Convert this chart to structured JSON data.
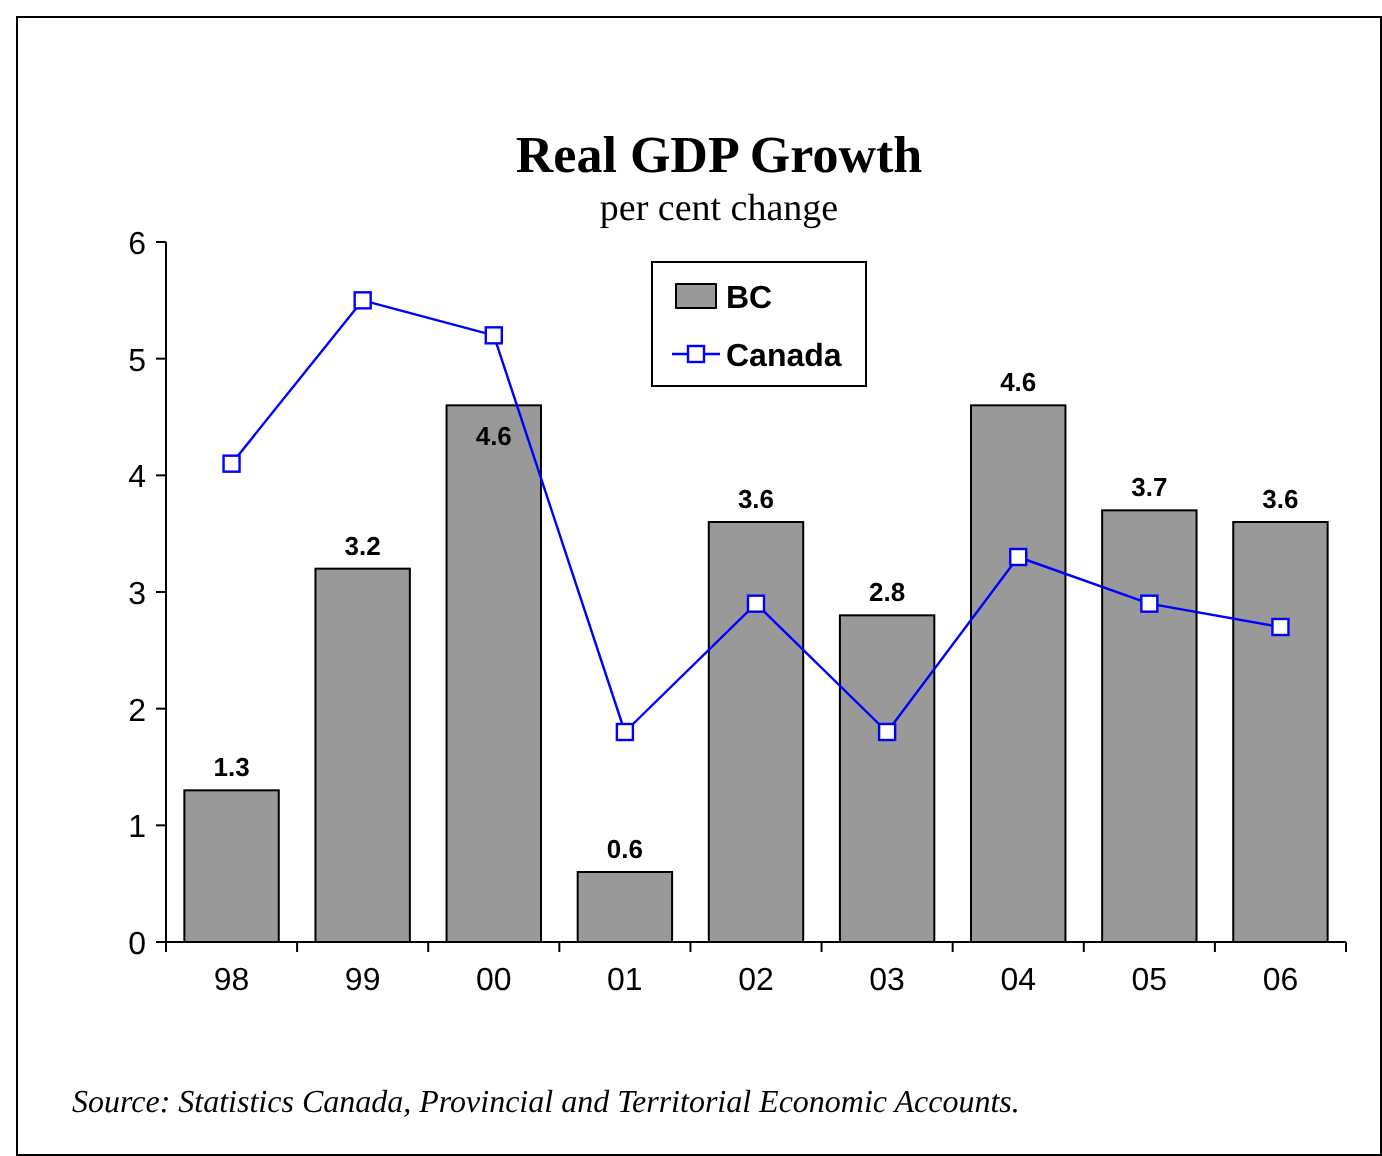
{
  "chart_data": {
    "type": "bar",
    "title": "Real GDP Growth",
    "subtitle": "per cent change",
    "categories": [
      "98",
      "99",
      "00",
      "01",
      "02",
      "03",
      "04",
      "05",
      "06"
    ],
    "series": [
      {
        "name": "BC",
        "color": "#999999",
        "values": [
          1.3,
          3.2,
          4.6,
          0.6,
          3.6,
          2.8,
          4.6,
          3.7,
          3.6
        ],
        "value_labels": [
          "1.3",
          "3.2",
          "4.6",
          "0.6",
          "3.6",
          "2.8",
          "4.6",
          "3.7",
          "3.6"
        ]
      },
      {
        "name": "Canada",
        "type": "line",
        "color": "#0000ff",
        "marker": "square",
        "values": [
          4.1,
          5.5,
          5.2,
          1.8,
          2.9,
          1.8,
          3.3,
          2.9,
          2.7
        ]
      }
    ],
    "ylim": [
      0,
      6
    ],
    "yticks": [
      0,
      1,
      2,
      3,
      4,
      5,
      6
    ],
    "grid": false,
    "legend": "top",
    "annotations": [
      "Source: Statistics Canada, Provincial and Territorial Economic Accounts."
    ]
  }
}
